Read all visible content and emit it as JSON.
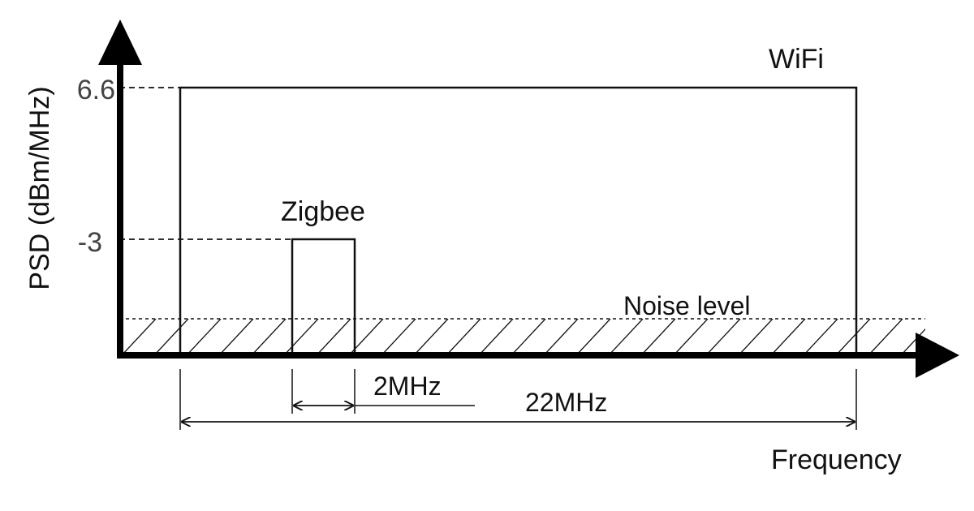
{
  "diagram": {
    "y_axis_label": "PSD (dBm/MHz)",
    "x_axis_label": "Frequency",
    "ticks": {
      "wifi_level": "6.6",
      "zigbee_level": "-3"
    },
    "labels": {
      "wifi": "WiFi",
      "zigbee": "Zigbee",
      "noise": "Noise level",
      "zigbee_bandwidth": "2MHz",
      "wifi_bandwidth": "22MHz"
    }
  }
}
